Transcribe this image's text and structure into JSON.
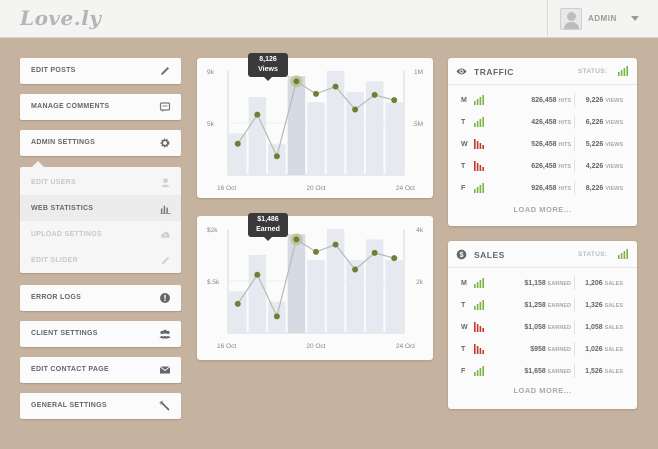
{
  "header": {
    "logo": "Love.ly",
    "user_label": "ADMIN"
  },
  "menu": {
    "edit_posts": "EDIT POSTS",
    "manage_comments": "MANAGE COMMENTS",
    "admin_settings": "ADMIN SETTINGS",
    "sub": {
      "edit_users": "EDIT USERS",
      "web_statistics": "WEB STATISTICS",
      "upload_settings": "UPLOAD SETTINGS",
      "edit_slider": "EDIT SLIDER"
    },
    "error_logs": "ERROR LOGS",
    "client_settings": "CLIENT SETTINGS",
    "edit_contact_page": "EDIT CONTACT PAGE",
    "general_settings": "GENERAL SETTINGS"
  },
  "chart_data": [
    {
      "type": "bar",
      "tooltip": {
        "value": "8,126",
        "label": "Views",
        "index": 3
      },
      "y_left_ticks": [
        "9k",
        "5k"
      ],
      "y_right_ticks": [
        "1M",
        ".5M"
      ],
      "x_ticks": [
        "16 Oct",
        "20 Oct",
        "24 Oct"
      ],
      "y_max": 10,
      "bars": [
        4,
        7.5,
        3,
        9.5,
        7,
        10,
        8,
        9,
        7
      ],
      "line": [
        3,
        5.8,
        1.8,
        9,
        7.8,
        8.5,
        6.3,
        7.7,
        7.2
      ]
    },
    {
      "type": "bar",
      "tooltip": {
        "value": "$1,486",
        "label": "Earned",
        "index": 3
      },
      "y_left_ticks": [
        "$2k",
        "$.5k"
      ],
      "y_right_ticks": [
        "4k",
        "2k"
      ],
      "x_ticks": [
        "16 Oct",
        "20 Oct",
        "24 Oct"
      ],
      "y_max": 10,
      "bars": [
        4,
        7.5,
        3,
        9.5,
        7,
        10,
        7,
        9,
        7
      ],
      "line": [
        2.8,
        5.6,
        1.6,
        9,
        7.8,
        8.5,
        6.1,
        7.7,
        7.2
      ]
    }
  ],
  "traffic": {
    "title": "TRAFFIC",
    "status_label": "STATUS:",
    "status_color": "#7cb342",
    "rows": [
      {
        "day": "M",
        "v1": "826,458",
        "u1": "HITS",
        "v2": "9,226",
        "u2": "VIEWS",
        "trend": "up"
      },
      {
        "day": "T",
        "v1": "426,458",
        "u1": "HITS",
        "v2": "6,226",
        "u2": "VIEWS",
        "trend": "up"
      },
      {
        "day": "W",
        "v1": "526,458",
        "u1": "HITS",
        "v2": "5,226",
        "u2": "VIEWS",
        "trend": "down"
      },
      {
        "day": "T",
        "v1": "626,458",
        "u1": "HITS",
        "v2": "4,226",
        "u2": "VIEWS",
        "trend": "down"
      },
      {
        "day": "F",
        "v1": "926,458",
        "u1": "HITS",
        "v2": "8,226",
        "u2": "VIEWS",
        "trend": "up"
      }
    ],
    "load_more": "LOAD MORE..."
  },
  "sales": {
    "title": "SALES",
    "status_label": "STATUS:",
    "status_color": "#7cb342",
    "rows": [
      {
        "day": "M",
        "v1": "$1,158",
        "u1": "EARNED",
        "v2": "1,206",
        "u2": "SALES",
        "trend": "up"
      },
      {
        "day": "T",
        "v1": "$1,258",
        "u1": "EARNED",
        "v2": "1,326",
        "u2": "SALES",
        "trend": "up"
      },
      {
        "day": "W",
        "v1": "$1,058",
        "u1": "EARNED",
        "v2": "1,058",
        "u2": "SALES",
        "trend": "down"
      },
      {
        "day": "T",
        "v1": "$958",
        "u1": "EARNED",
        "v2": "1,026",
        "u2": "SALES",
        "trend": "down"
      },
      {
        "day": "F",
        "v1": "$1,658",
        "u1": "EARNED",
        "v2": "1,526",
        "u2": "SALES",
        "trend": "up"
      }
    ],
    "load_more": "LOAD MORE..."
  },
  "colors": {
    "up": "#7cb342",
    "down": "#c0392b",
    "line": "#b8b8b8",
    "dot": "#6f7f34",
    "bar": "#e6e9ef",
    "bar_hover": "#d6dae2"
  }
}
